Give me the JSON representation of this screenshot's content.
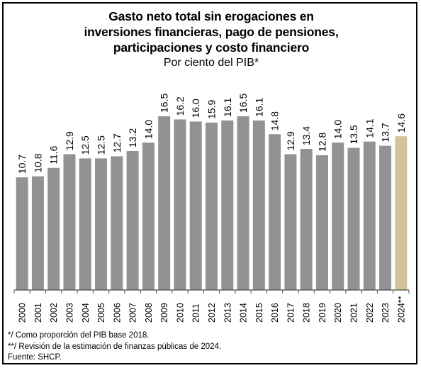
{
  "chart_data": {
    "type": "bar",
    "title_lines": [
      "Gasto neto total sin erogaciones en",
      "inversiones financieras, pago de pensiones,",
      "participaciones y costo financiero"
    ],
    "subtitle": "Por ciento del PIB*",
    "categories": [
      "2000",
      "2001",
      "2002",
      "2003",
      "2004",
      "2005",
      "2006",
      "2007",
      "2008",
      "2009",
      "2010",
      "2011",
      "2012",
      "2013",
      "2014",
      "2015",
      "2016",
      "2017",
      "2018",
      "2019",
      "2020",
      "2021",
      "2022",
      "2023",
      "2024**"
    ],
    "values": [
      10.7,
      10.8,
      11.6,
      12.9,
      12.5,
      12.5,
      12.7,
      13.2,
      14.0,
      16.5,
      16.2,
      16.0,
      15.9,
      16.1,
      16.5,
      16.1,
      14.8,
      12.9,
      13.4,
      12.8,
      14.0,
      13.5,
      14.1,
      13.7,
      14.6
    ],
    "value_labels": [
      "10.7",
      "10.8",
      "11.6",
      "12.9",
      "12.5",
      "12.5",
      "12.7",
      "13.2",
      "14.0",
      "16.5",
      "16.2",
      "16.0",
      "15.9",
      "16.1",
      "16.5",
      "16.1",
      "14.8",
      "12.9",
      "13.4",
      "12.8",
      "14.0",
      "13.5",
      "14.1",
      "13.7",
      "14.6"
    ],
    "highlight_index": 24,
    "ylim": [
      0,
      16.5
    ],
    "grid": false,
    "legend": "none",
    "xlabel": "",
    "ylabel": "",
    "colors": {
      "bar": "#929292",
      "highlight": "#d6c29a",
      "axis": "#4d4d4d",
      "frame": "#000000",
      "text": "#000000"
    }
  },
  "notes": [
    "*/ Como proporción del PIB base 2018.",
    "**/ Revisión de la estimación de finanzas públicas de 2024.",
    "Fuente: SHCP."
  ]
}
